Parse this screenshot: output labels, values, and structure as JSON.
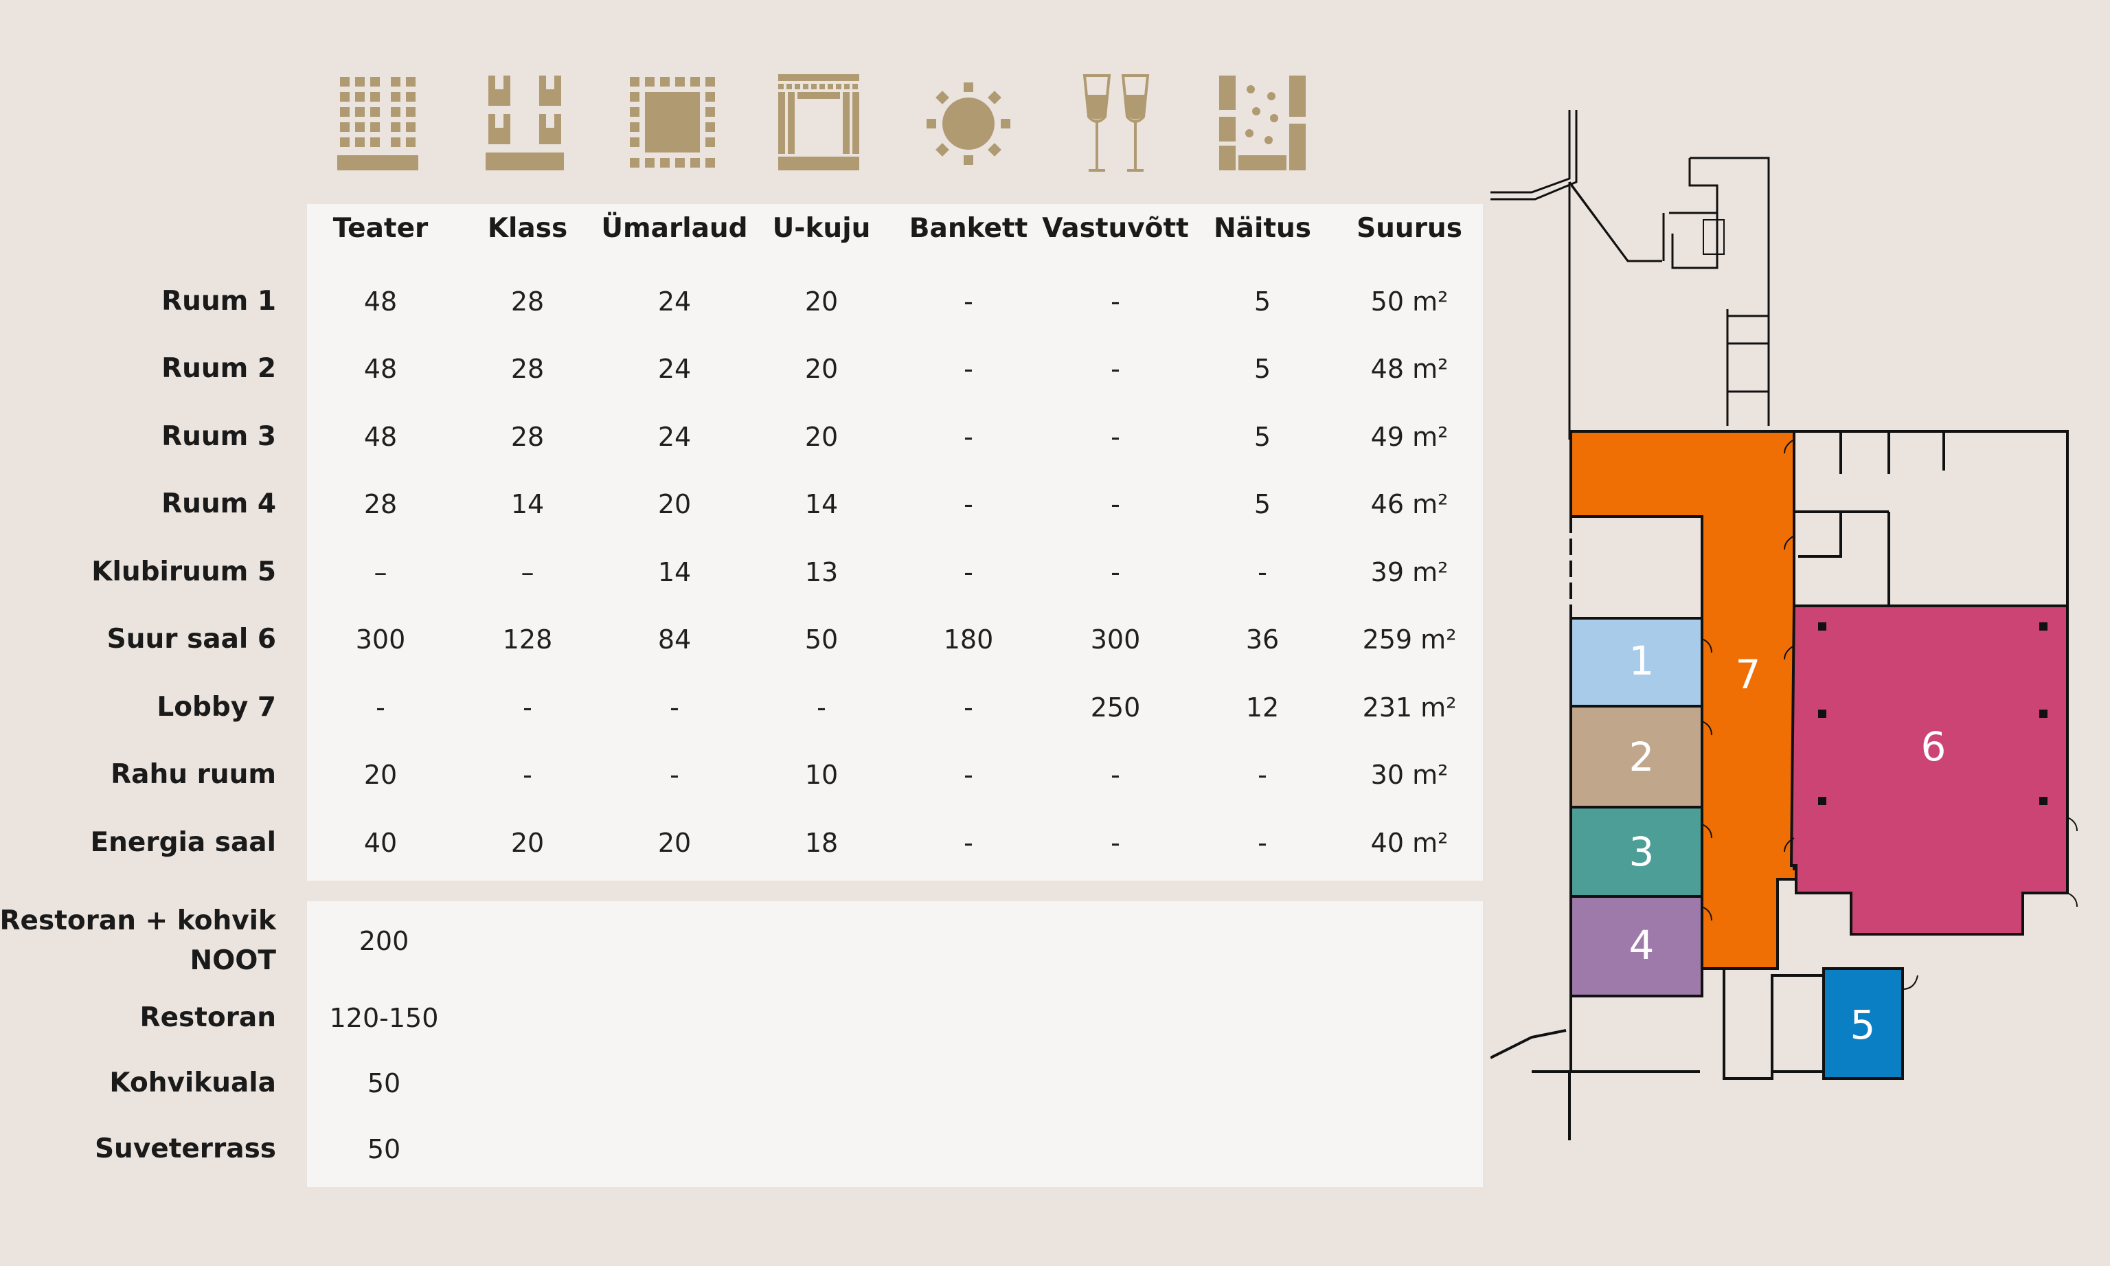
{
  "columns": [
    {
      "label": "Teater",
      "icon": "theater-seating-icon"
    },
    {
      "label": "Klass",
      "icon": "classroom-seating-icon"
    },
    {
      "label": "Ümarlaud",
      "icon": "round-table-seating-icon"
    },
    {
      "label": "U-kuju",
      "icon": "u-shape-seating-icon"
    },
    {
      "label": "Bankett",
      "icon": "banquet-seating-icon"
    },
    {
      "label": "Vastuvõtt",
      "icon": "reception-glasses-icon"
    },
    {
      "label": "Näitus",
      "icon": "exhibition-layout-icon"
    },
    {
      "label": "Suurus",
      "icon": ""
    }
  ],
  "rooms": [
    {
      "name": "Ruum 1",
      "values": [
        "48",
        "28",
        "24",
        "20",
        "-",
        "-",
        "5",
        "50 m²"
      ]
    },
    {
      "name": "Ruum 2",
      "values": [
        "48",
        "28",
        "24",
        "20",
        "-",
        "-",
        "5",
        "48 m²"
      ]
    },
    {
      "name": "Ruum 3",
      "values": [
        "48",
        "28",
        "24",
        "20",
        "-",
        "-",
        "5",
        "49 m²"
      ]
    },
    {
      "name": "Ruum 4",
      "values": [
        "28",
        "14",
        "20",
        "14",
        "-",
        "-",
        "5",
        "46 m²"
      ]
    },
    {
      "name": "Klubiruum 5",
      "values": [
        "–",
        "–",
        "14",
        "13",
        "-",
        "-",
        "-",
        "39 m²"
      ]
    },
    {
      "name": "Suur saal 6",
      "values": [
        "300",
        "128",
        "84",
        "50",
        "180",
        "300",
        "36",
        "259 m²"
      ]
    },
    {
      "name": "Lobby 7",
      "values": [
        "-",
        "-",
        "-",
        "-",
        "-",
        "250",
        "12",
        "231 m²"
      ]
    },
    {
      "name": "Rahu ruum",
      "values": [
        "20",
        "-",
        "-",
        "10",
        "-",
        "-",
        "-",
        "30 m²"
      ]
    },
    {
      "name": "Energia saal",
      "values": [
        "40",
        "20",
        "20",
        "18",
        "-",
        "-",
        "-",
        "40 m²"
      ]
    }
  ],
  "dining": [
    {
      "name_line1": "Restoran + kohvik",
      "name_line2": "NOOT",
      "value": "200"
    },
    {
      "name_line1": "Restoran",
      "name_line2": "",
      "value": "120-150"
    },
    {
      "name_line1": "Kohvikuala",
      "name_line2": "",
      "value": "50"
    },
    {
      "name_line1": "Suveterrass",
      "name_line2": "",
      "value": "50"
    }
  ],
  "floor_plan": {
    "room_numbers": [
      "1",
      "2",
      "3",
      "4",
      "5",
      "6",
      "7"
    ],
    "colors": {
      "room1": "#a9cbea",
      "room2": "#c0a68a",
      "room3": "#4e9e98",
      "room4": "#9d7aa9",
      "room5": "#0a7fc4",
      "room6": "#cc4474",
      "room7": "#ef6f05"
    }
  },
  "icon_color": "#b09a72"
}
